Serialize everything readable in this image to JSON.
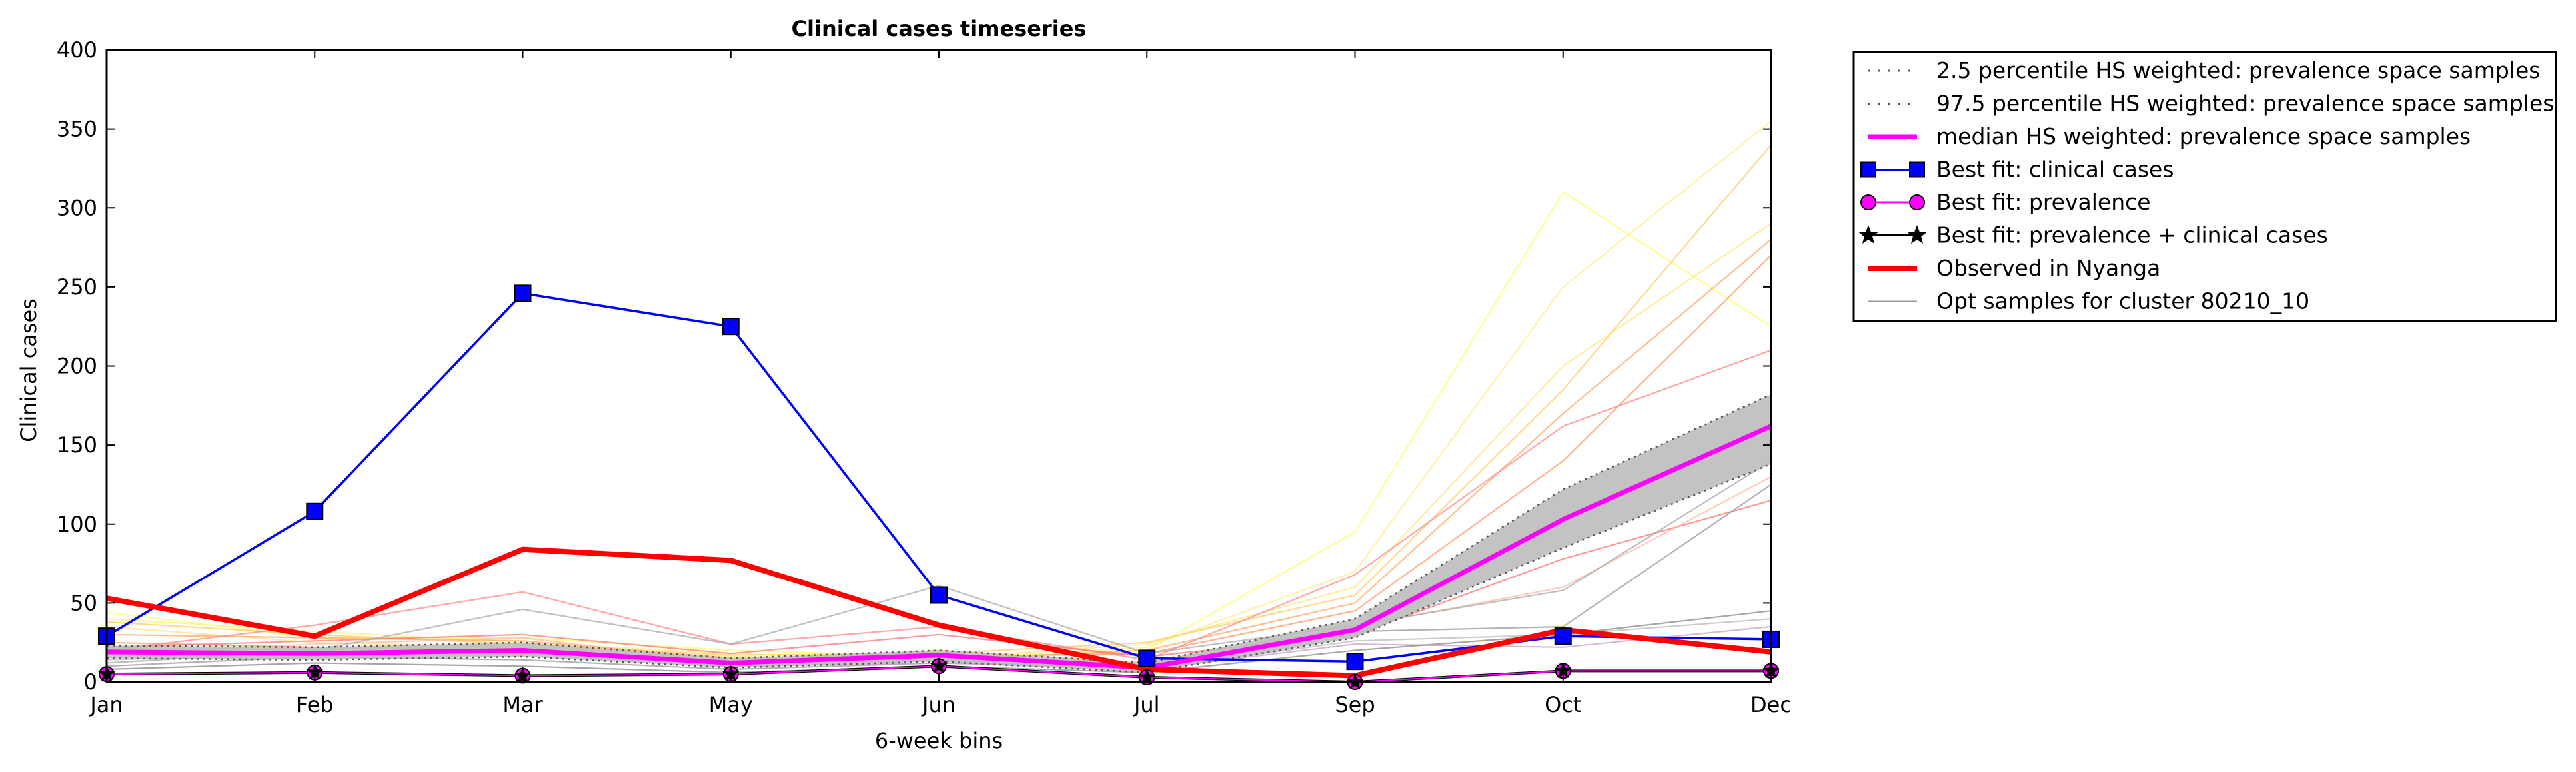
{
  "chart_data": {
    "type": "line",
    "title": "Clinical cases timeseries",
    "xlabel": "6-week bins",
    "ylabel": "Clinical cases",
    "categories": [
      "Jan",
      "Feb",
      "Mar",
      "May",
      "Jun",
      "Jul",
      "Sep",
      "Oct",
      "Dec"
    ],
    "ylim": [
      0,
      400
    ],
    "yticks": [
      0,
      50,
      100,
      150,
      200,
      250,
      300,
      350,
      400
    ],
    "grid": false,
    "legend_position": "outside-top-right",
    "band": {
      "lower_name": "2.5 percentile HS weighted: prevalence space samples",
      "upper_name": "97.5 percentile HS weighted: prevalence space samples",
      "lower": [
        15,
        14,
        16,
        9,
        13,
        6,
        28,
        85,
        138
      ],
      "upper": [
        23,
        22,
        25,
        15,
        20,
        12,
        40,
        122,
        182
      ],
      "fill": "#bdbdbd",
      "line_color": "#555555"
    },
    "median": {
      "name": "median HS weighted: prevalence space samples",
      "values": [
        19,
        18,
        20,
        12,
        17,
        9,
        33,
        103,
        162
      ],
      "color": "#ff00ff"
    },
    "series": [
      {
        "name": "Best fit: clinical cases",
        "values": [
          29,
          108,
          246,
          225,
          55,
          15,
          13,
          29,
          27
        ],
        "color": "#0000ff",
        "marker": "square"
      },
      {
        "name": "Best fit: prevalence",
        "values": [
          5,
          6,
          4,
          5,
          10,
          3,
          0,
          7,
          7
        ],
        "color": "#ff00ff",
        "marker": "circle"
      },
      {
        "name": "Best fit: prevalence + clinical cases",
        "values": [
          5,
          6,
          4,
          5,
          10,
          3,
          0,
          7,
          7
        ],
        "color": "#000000",
        "marker": "star"
      },
      {
        "name": "Observed in Nyanga",
        "values": [
          53,
          29,
          84,
          77,
          36,
          8,
          4,
          33,
          19
        ],
        "color": "#ff0000",
        "marker": "none"
      }
    ],
    "samples": {
      "name": "Opt samples for cluster 80210_10",
      "lines": [
        {
          "color": "#ffff66",
          "values": [
            44,
            28,
            28,
            20,
            16,
            20,
            95,
            310,
            225
          ]
        },
        {
          "color": "#ffee88",
          "values": [
            40,
            32,
            25,
            18,
            14,
            22,
            70,
            250,
            355
          ]
        },
        {
          "color": "#ffe680",
          "values": [
            35,
            25,
            22,
            16,
            15,
            24,
            60,
            200,
            290
          ]
        },
        {
          "color": "#ffcc66",
          "values": [
            38,
            30,
            24,
            17,
            18,
            25,
            55,
            185,
            340
          ]
        },
        {
          "color": "#ffaa66",
          "values": [
            30,
            28,
            26,
            15,
            14,
            20,
            50,
            170,
            280
          ]
        },
        {
          "color": "#ff9966",
          "values": [
            25,
            22,
            20,
            12,
            16,
            18,
            45,
            140,
            270
          ]
        },
        {
          "color": "#ff8888",
          "values": [
            20,
            36,
            57,
            24,
            35,
            14,
            68,
            162,
            210
          ]
        },
        {
          "color": "#ff7777",
          "values": [
            22,
            26,
            30,
            18,
            30,
            16,
            30,
            78,
            115
          ]
        },
        {
          "color": "#ffbbaa",
          "values": [
            18,
            24,
            28,
            12,
            20,
            12,
            35,
            60,
            130
          ]
        },
        {
          "color": "#aaaaaa",
          "values": [
            12,
            20,
            46,
            24,
            61,
            18,
            36,
            58,
            140
          ]
        },
        {
          "color": "#999999",
          "values": [
            10,
            16,
            14,
            8,
            12,
            10,
            32,
            35,
            125
          ]
        },
        {
          "color": "#bbbbbb",
          "values": [
            14,
            18,
            20,
            10,
            14,
            8,
            26,
            30,
            40
          ]
        },
        {
          "color": "#c8a0c8",
          "values": [
            22,
            16,
            18,
            10,
            12,
            8,
            24,
            22,
            35
          ]
        },
        {
          "color": "#888888",
          "values": [
            8,
            12,
            10,
            6,
            10,
            6,
            20,
            30,
            45
          ]
        }
      ]
    }
  }
}
